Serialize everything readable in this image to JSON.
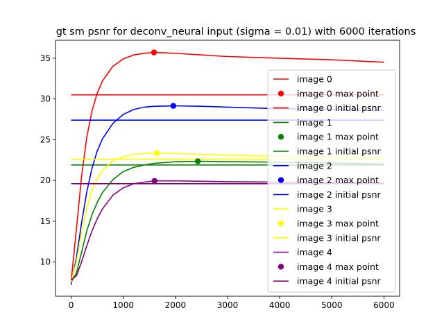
{
  "chart_data": {
    "type": "line",
    "title": "gt sm psnr for deconv_neural input (sigma = 0.01) with 6000 iterations",
    "xlabel": "",
    "ylabel": "",
    "xlim": [
      -300,
      6300
    ],
    "ylim": [
      5.8,
      37.2
    ],
    "xticks": [
      0,
      1000,
      2000,
      3000,
      4000,
      5000,
      6000
    ],
    "yticks": [
      10,
      15,
      20,
      25,
      30,
      35
    ],
    "grid": false,
    "legend_position": "right",
    "series": [
      {
        "name": "image 0",
        "max_point_name": "image 0 max point",
        "initial_name": "image 0 initial psnr",
        "color": "#ff0000",
        "x": [
          0,
          100,
          200,
          300,
          400,
          500,
          600,
          800,
          1000,
          1200,
          1400,
          1600,
          2000,
          2500,
          3000,
          4000,
          5000,
          6000
        ],
        "y": [
          7.6,
          14.0,
          20.5,
          25.3,
          28.5,
          30.7,
          32.2,
          34.0,
          34.9,
          35.4,
          35.6,
          35.7,
          35.6,
          35.4,
          35.2,
          35.0,
          34.8,
          34.5
        ],
        "max_point": [
          1590,
          35.7
        ],
        "initial_psnr": 30.5
      },
      {
        "name": "image 1",
        "max_point_name": "image 1 max point",
        "initial_name": "image 1 initial psnr",
        "color": "#008000",
        "x": [
          0,
          100,
          200,
          300,
          400,
          500,
          600,
          800,
          1000,
          1200,
          1400,
          1600,
          2000,
          2500,
          3000,
          4000,
          5000,
          6000
        ],
        "y": [
          7.6,
          8.6,
          11.2,
          13.8,
          15.8,
          17.3,
          18.5,
          20.1,
          21.1,
          21.6,
          21.9,
          22.1,
          22.3,
          22.35,
          22.3,
          22.25,
          22.15,
          22.0
        ],
        "max_point": [
          2430,
          22.35
        ],
        "initial_psnr": 21.9
      },
      {
        "name": "image 2",
        "max_point_name": "image 2 max point",
        "initial_name": "image 2 initial psnr",
        "color": "#0000ff",
        "x": [
          0,
          100,
          200,
          300,
          400,
          500,
          600,
          800,
          1000,
          1200,
          1400,
          1600,
          2000,
          2500,
          3000,
          4000,
          5000,
          6000
        ],
        "y": [
          7.2,
          10.5,
          14.8,
          18.6,
          21.5,
          23.6,
          25.1,
          27.0,
          28.1,
          28.7,
          29.0,
          29.1,
          29.15,
          29.1,
          29.0,
          28.8,
          28.7,
          28.6
        ],
        "max_point": [
          1960,
          29.15
        ],
        "initial_psnr": 27.4
      },
      {
        "name": "image 3",
        "max_point_name": "image 3 max point",
        "initial_name": "image 3 initial psnr",
        "color": "#ffff00",
        "x": [
          0,
          100,
          200,
          300,
          400,
          500,
          600,
          800,
          1000,
          1200,
          1400,
          1600,
          2000,
          2500,
          3000,
          4000,
          5000,
          6000
        ],
        "y": [
          7.5,
          10.0,
          13.6,
          16.6,
          18.8,
          20.2,
          21.2,
          22.4,
          22.9,
          23.2,
          23.3,
          23.35,
          23.3,
          23.2,
          23.1,
          23.0,
          22.9,
          22.8
        ],
        "max_point": [
          1650,
          23.35
        ],
        "initial_psnr": 22.6
      },
      {
        "name": "image 4",
        "max_point_name": "image 4 max point",
        "initial_name": "image 4 initial psnr",
        "color": "#800080",
        "x": [
          0,
          100,
          200,
          300,
          400,
          500,
          600,
          800,
          1000,
          1200,
          1400,
          1600,
          2000,
          2500,
          3000,
          4000,
          5000,
          6000
        ],
        "y": [
          7.8,
          8.3,
          10.0,
          12.0,
          13.8,
          15.3,
          16.5,
          18.2,
          19.1,
          19.6,
          19.8,
          19.95,
          19.95,
          19.9,
          19.85,
          19.8,
          19.75,
          19.7
        ],
        "max_point": [
          1600,
          19.95
        ],
        "initial_psnr": 19.6
      }
    ]
  }
}
